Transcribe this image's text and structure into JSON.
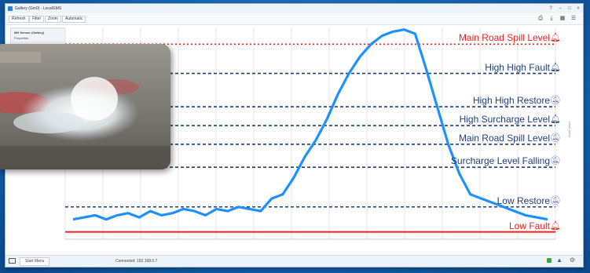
{
  "window": {
    "title": "Gallery (Gm0) - LocalGMS",
    "controls": [
      "?",
      "–",
      "□",
      "×"
    ]
  },
  "toolbar": {
    "buttons": [
      "Refresh",
      "Filter",
      "Zoom",
      "Automatic"
    ],
    "right_icons": [
      "print-icon",
      "download-icon",
      "grid-icon",
      "menu-icon"
    ]
  },
  "side_panel": {
    "title": "MH Sensor (Gallery)",
    "subtitle": "Properties"
  },
  "levels": [
    {
      "label": "Main Road Spill Level",
      "color": "#e8231c",
      "bell": "filled",
      "style": "dotted"
    },
    {
      "label": "High High Fault",
      "color": "#1f3f7a",
      "bell": "filled",
      "style": "dashed"
    },
    {
      "label": "High High Restore",
      "color": "#1f3f7a",
      "bell": "outline",
      "style": "dashed"
    },
    {
      "label": "High Surcharge Level",
      "color": "#1f3f7a",
      "bell": "filled",
      "style": "dashed"
    },
    {
      "label": "Main Road Spill Level",
      "color": "#1f3f7a",
      "bell": "outline",
      "style": "dashed"
    },
    {
      "label": "Surcharge Level Falling",
      "color": "#1f3f7a",
      "bell": "outline",
      "style": "dashed"
    },
    {
      "label": "Low Restore",
      "color": "#1f3f7a",
      "bell": "outline",
      "style": "dashed"
    },
    {
      "label": "Low Fault",
      "color": "#e8231c",
      "bell": "filled",
      "style": "solid"
    }
  ],
  "right_axis_label": "Level (mm)",
  "statusbar": {
    "start_menu": "Start Menu",
    "center_text": "Connected: 192.168.0.7"
  },
  "chart_data": {
    "type": "line",
    "series": [
      {
        "color": "#1e90ff",
        "values": [
          0.08,
          0.09,
          0.1,
          0.08,
          0.1,
          0.11,
          0.09,
          0.12,
          0.1,
          0.11,
          0.13,
          0.12,
          0.1,
          0.13,
          0.12,
          0.14,
          0.13,
          0.12,
          0.18,
          0.2,
          0.28,
          0.38,
          0.46,
          0.56,
          0.68,
          0.78,
          0.86,
          0.92,
          0.96,
          0.98,
          0.99,
          0.97,
          0.8,
          0.62,
          0.44,
          0.3,
          0.2,
          0.18,
          0.16,
          0.14,
          0.12,
          0.1,
          0.09,
          0.08
        ]
      }
    ],
    "ylim": [
      0,
      1
    ],
    "grid": true,
    "level_values": [
      0.92,
      0.78,
      0.62,
      0.53,
      0.44,
      0.33,
      0.14,
      0.02
    ]
  }
}
